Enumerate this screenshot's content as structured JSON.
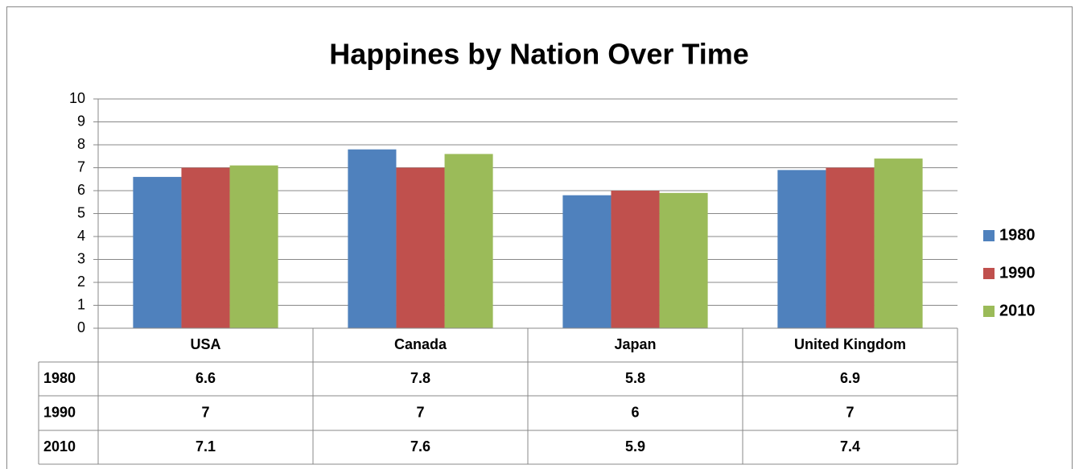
{
  "chart_data": {
    "type": "bar",
    "title": "Happines by Nation Over Time",
    "categories": [
      "USA",
      "Canada",
      "Japan",
      "United Kingdom"
    ],
    "series": [
      {
        "name": "1980",
        "color": "#4f81bd",
        "values": [
          6.6,
          7.8,
          5.8,
          6.9
        ]
      },
      {
        "name": "1990",
        "color": "#c0504d",
        "values": [
          7,
          7,
          6,
          7
        ]
      },
      {
        "name": "2010",
        "color": "#9bbb59",
        "values": [
          7.1,
          7.6,
          5.9,
          7.4
        ]
      }
    ],
    "ylim": [
      0,
      10
    ],
    "yticks": [
      0,
      1,
      2,
      3,
      4,
      5,
      6,
      7,
      8,
      9,
      10
    ],
    "grid": true,
    "legend": "right",
    "data_table": true
  }
}
